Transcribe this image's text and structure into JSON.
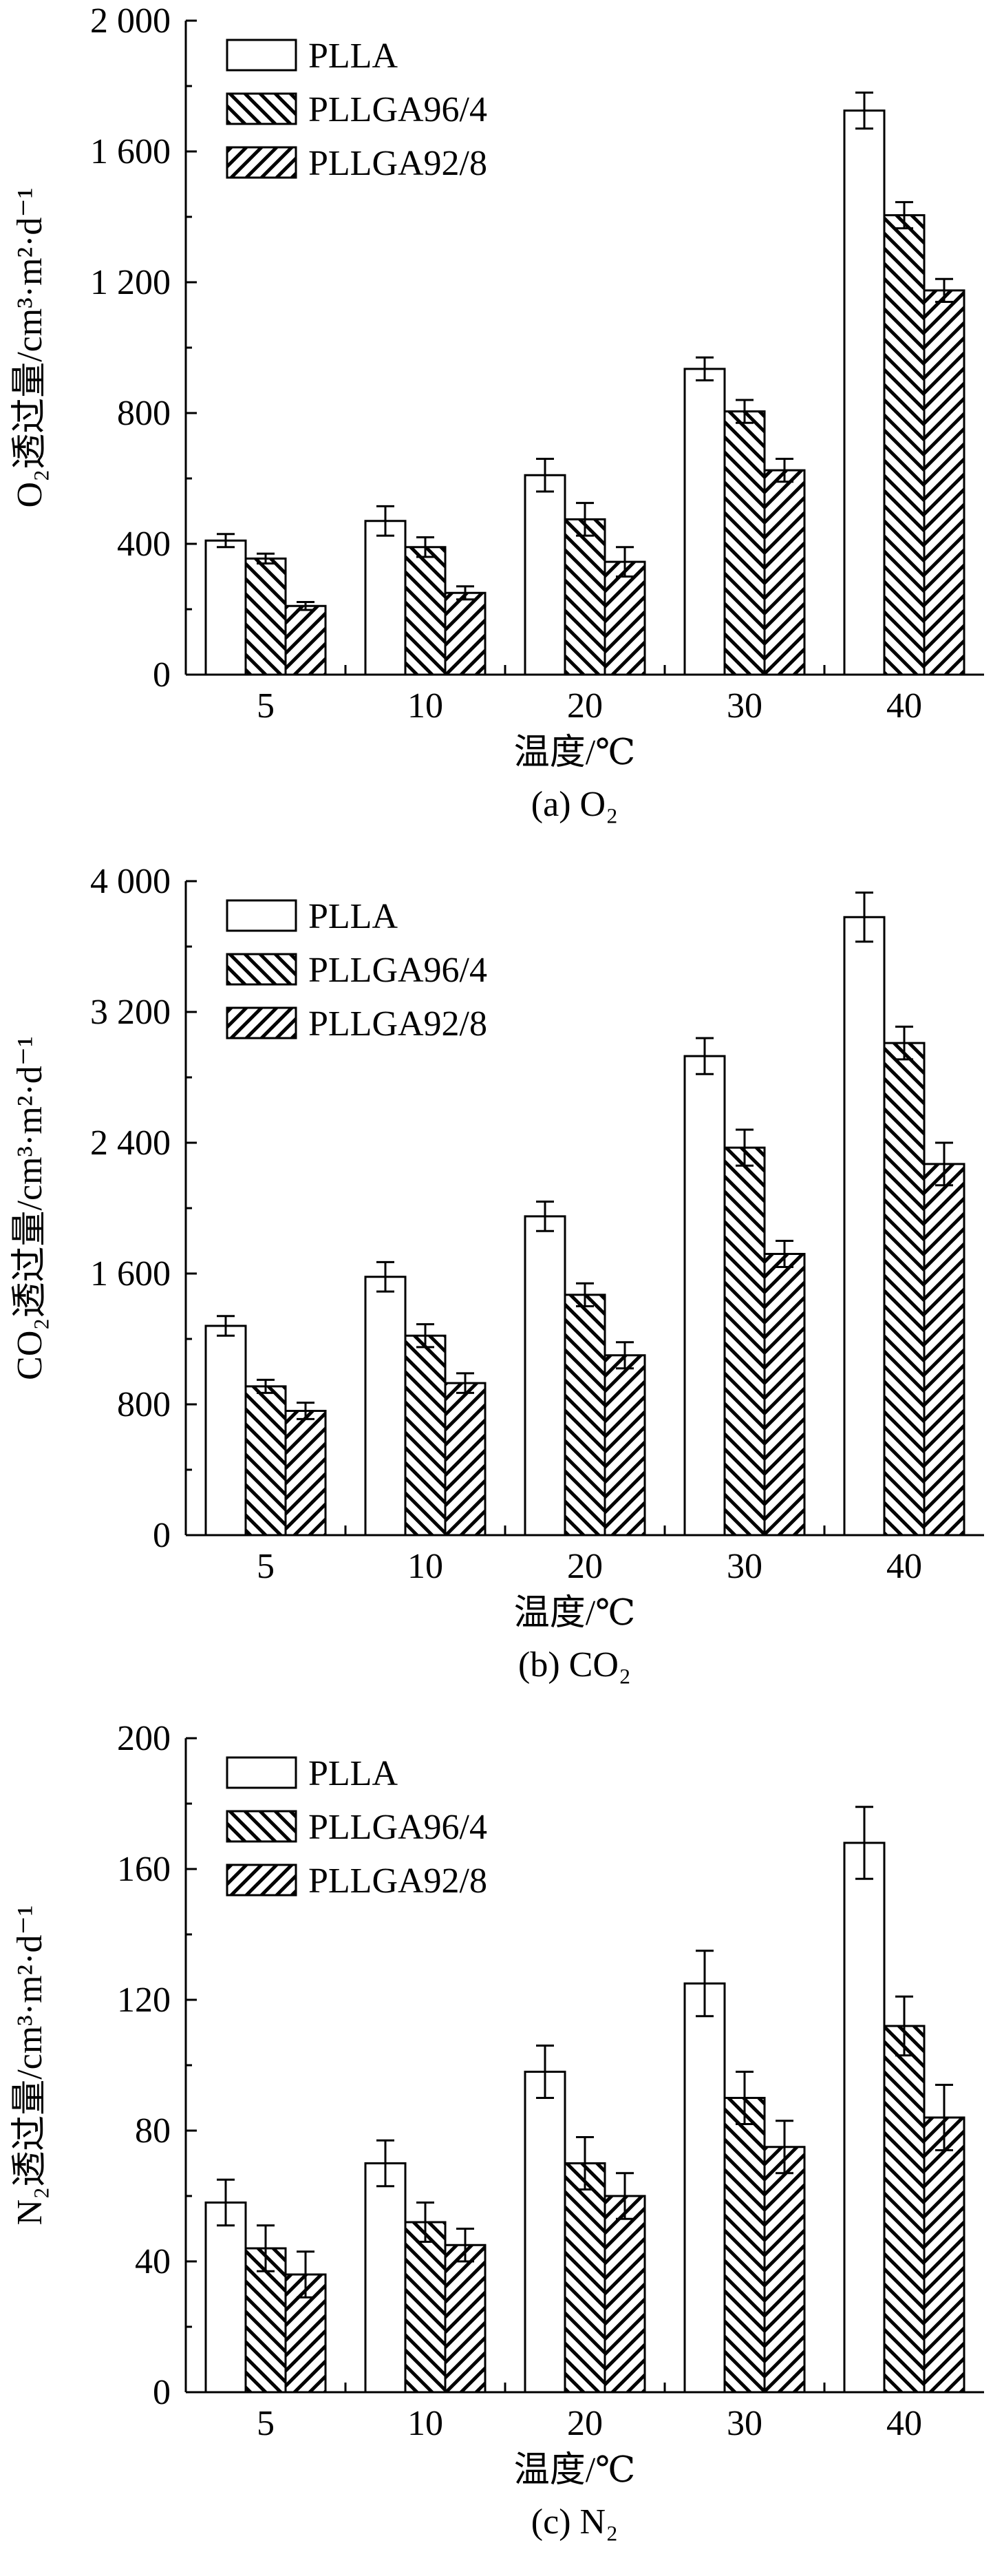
{
  "chart_data": [
    {
      "type": "bar",
      "caption": "(a) O₂",
      "xlabel": "温度/℃",
      "ylabel": "O₂透过量/cm³·m²·d⁻¹",
      "categories": [
        "5",
        "10",
        "20",
        "30",
        "40"
      ],
      "ylim": [
        0,
        2000
      ],
      "yticks": [
        0,
        400,
        800,
        1200,
        1600,
        2000
      ],
      "ytick_labels": [
        "0",
        "400",
        "800",
        "1 200",
        "1 600",
        "2 000"
      ],
      "legend_position": "top-left",
      "series": [
        {
          "name": "PLLA",
          "pattern": "none",
          "values": [
            410,
            470,
            610,
            935,
            1725
          ],
          "errors": [
            20,
            45,
            50,
            35,
            55
          ]
        },
        {
          "name": "PLLGA96/4",
          "pattern": "backslash",
          "values": [
            355,
            390,
            475,
            805,
            1405
          ],
          "errors": [
            15,
            30,
            50,
            35,
            40
          ]
        },
        {
          "name": "PLLGA92/8",
          "pattern": "slash",
          "values": [
            210,
            250,
            345,
            625,
            1175
          ],
          "errors": [
            12,
            20,
            45,
            35,
            35
          ]
        }
      ]
    },
    {
      "type": "bar",
      "caption": "(b) CO₂",
      "xlabel": "温度/℃",
      "ylabel": "CO₂透过量/cm³·m²·d⁻¹",
      "categories": [
        "5",
        "10",
        "20",
        "30",
        "40"
      ],
      "ylim": [
        0,
        4000
      ],
      "yticks": [
        0,
        800,
        1600,
        2400,
        3200,
        4000
      ],
      "ytick_labels": [
        "0",
        "800",
        "1 600",
        "2 400",
        "3 200",
        "4 000"
      ],
      "legend_position": "top-left",
      "series": [
        {
          "name": "PLLA",
          "pattern": "none",
          "values": [
            1280,
            1580,
            1950,
            2930,
            3780
          ],
          "errors": [
            60,
            90,
            90,
            110,
            150
          ]
        },
        {
          "name": "PLLGA96/4",
          "pattern": "backslash",
          "values": [
            910,
            1220,
            1470,
            2370,
            3010
          ],
          "errors": [
            40,
            70,
            70,
            110,
            100
          ]
        },
        {
          "name": "PLLGA92/8",
          "pattern": "slash",
          "values": [
            760,
            930,
            1100,
            1720,
            2270
          ],
          "errors": [
            50,
            60,
            80,
            80,
            130
          ]
        }
      ]
    },
    {
      "type": "bar",
      "caption": "(c) N₂",
      "xlabel": "温度/℃",
      "ylabel": "N₂透过量/cm³·m²·d⁻¹",
      "categories": [
        "5",
        "10",
        "20",
        "30",
        "40"
      ],
      "ylim": [
        0,
        200
      ],
      "yticks": [
        0,
        40,
        80,
        120,
        160,
        200
      ],
      "ytick_labels": [
        "0",
        "40",
        "80",
        "120",
        "160",
        "200"
      ],
      "legend_position": "top-left",
      "series": [
        {
          "name": "PLLA",
          "pattern": "none",
          "values": [
            58,
            70,
            98,
            125,
            168
          ],
          "errors": [
            7,
            7,
            8,
            10,
            11
          ]
        },
        {
          "name": "PLLGA96/4",
          "pattern": "backslash",
          "values": [
            44,
            52,
            70,
            90,
            112
          ],
          "errors": [
            7,
            6,
            8,
            8,
            9
          ]
        },
        {
          "name": "PLLGA92/8",
          "pattern": "slash",
          "values": [
            36,
            45,
            60,
            75,
            84
          ],
          "errors": [
            7,
            5,
            7,
            8,
            10
          ]
        }
      ]
    }
  ]
}
